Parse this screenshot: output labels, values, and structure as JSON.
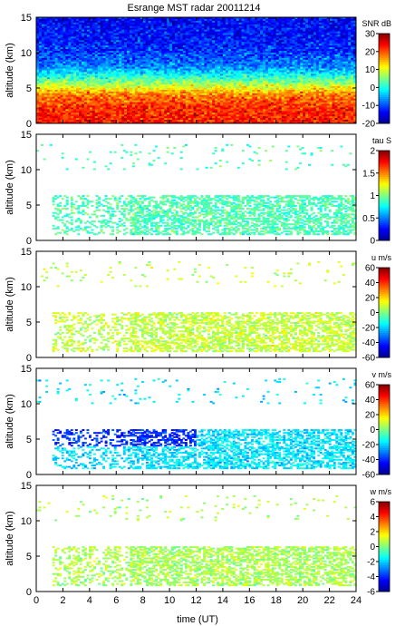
{
  "title": "Esrange MST radar 20011214",
  "xlabel": "time (UT)",
  "ylabel": "altitude (km)",
  "colormap": [
    "#00008f",
    "#0000ff",
    "#0080ff",
    "#00ffff",
    "#80ff80",
    "#ffff00",
    "#ff8000",
    "#ff0000",
    "#800000"
  ],
  "chart_data": [
    {
      "type": "heatmap",
      "name": "snr",
      "colorbar_label": "SNR dB",
      "clim": [
        -20,
        30
      ],
      "cticks": [
        30,
        20,
        10,
        0,
        -10,
        -20
      ],
      "xlim": [
        0,
        24
      ],
      "ylim": [
        0,
        15
      ],
      "xticks": [
        0,
        2,
        4,
        6,
        8,
        10,
        12,
        14,
        16,
        18,
        20,
        22,
        24
      ],
      "yticks": [
        0,
        5,
        10,
        15
      ],
      "show_xticklabels": false,
      "profile_km": [
        0,
        2,
        4,
        6,
        8,
        10,
        12,
        15
      ],
      "profile_value": [
        23,
        22,
        18,
        4,
        -7,
        -11,
        -13,
        -14
      ],
      "dense": true
    },
    {
      "type": "heatmap",
      "name": "tau",
      "colorbar_label": "tau S",
      "clim": [
        0,
        2
      ],
      "cticks": [
        2,
        1.5,
        1,
        0.5,
        0
      ],
      "xlim": [
        0,
        24
      ],
      "ylim": [
        0,
        15
      ],
      "xticks": [
        0,
        2,
        4,
        6,
        8,
        10,
        12,
        14,
        16,
        18,
        20,
        22,
        24
      ],
      "yticks": [
        0,
        5,
        10,
        15
      ],
      "show_xticklabels": false,
      "typical_value": 0.9,
      "dense": false
    },
    {
      "type": "heatmap",
      "name": "u",
      "colorbar_label": "u m/s",
      "clim": [
        -60,
        60
      ],
      "cticks": [
        60,
        40,
        20,
        0,
        -20,
        -40,
        -60
      ],
      "xlim": [
        0,
        24
      ],
      "ylim": [
        0,
        15
      ],
      "xticks": [
        0,
        2,
        4,
        6,
        8,
        10,
        12,
        14,
        16,
        18,
        20,
        22,
        24
      ],
      "yticks": [
        0,
        5,
        10,
        15
      ],
      "show_xticklabels": false,
      "typical_value": 8,
      "dense": false
    },
    {
      "type": "heatmap",
      "name": "v",
      "colorbar_label": "v m/s",
      "clim": [
        -60,
        60
      ],
      "cticks": [
        60,
        40,
        20,
        0,
        -20,
        -40,
        -60
      ],
      "xlim": [
        0,
        24
      ],
      "ylim": [
        0,
        15
      ],
      "xticks": [
        0,
        2,
        4,
        6,
        8,
        10,
        12,
        14,
        16,
        18,
        20,
        22,
        24
      ],
      "yticks": [
        0,
        5,
        10,
        15
      ],
      "show_xticklabels": false,
      "typical_value": -18,
      "low_altitude_value": -40,
      "dense": false
    },
    {
      "type": "heatmap",
      "name": "w",
      "colorbar_label": "w m/s",
      "clim": [
        -6,
        6
      ],
      "cticks": [
        6,
        4,
        2,
        0,
        -2,
        -4,
        -6
      ],
      "xlim": [
        0,
        24
      ],
      "ylim": [
        0,
        15
      ],
      "xticks": [
        0,
        2,
        4,
        6,
        8,
        10,
        12,
        14,
        16,
        18,
        20,
        22,
        24
      ],
      "yticks": [
        0,
        5,
        10,
        15
      ],
      "show_xticklabels": true,
      "typical_value": 0.5,
      "dense": false
    }
  ]
}
